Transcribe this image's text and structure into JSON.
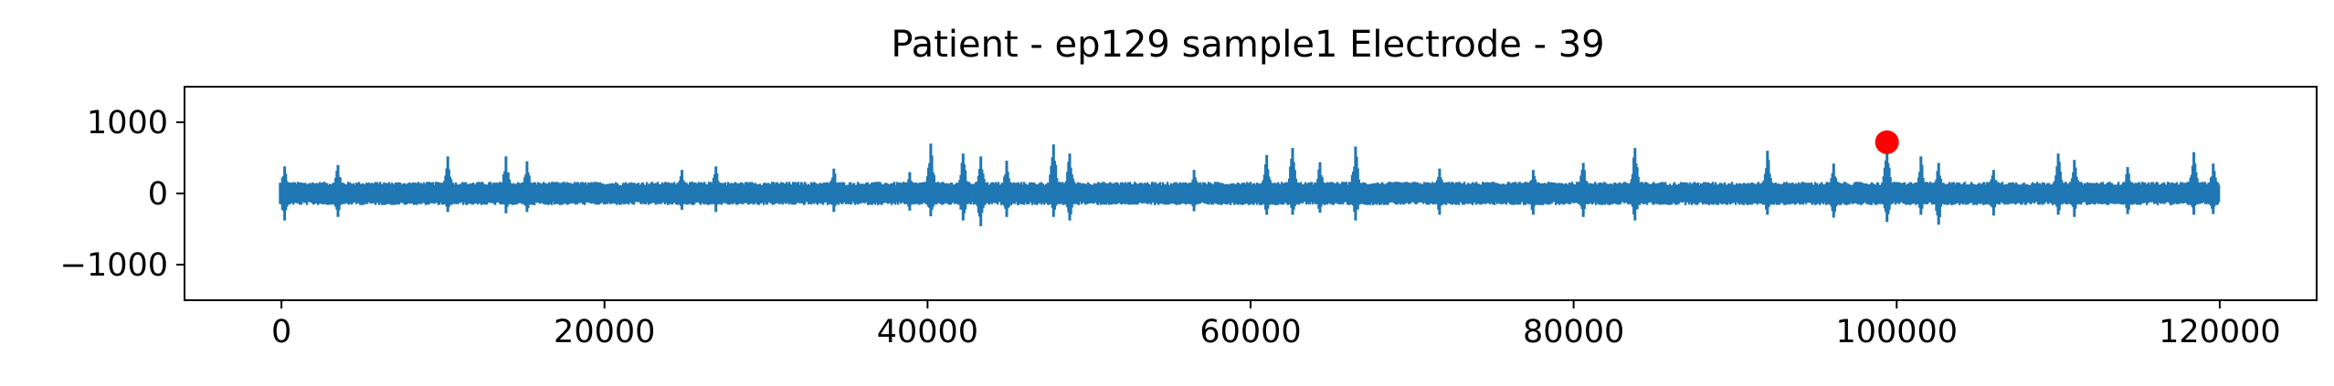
{
  "chart_data": {
    "type": "line",
    "title": "Patient - ep129 sample1 Electrode - 39",
    "xlabel": "",
    "ylabel": "",
    "xlim": [
      -6000,
      126000
    ],
    "ylim": [
      -1500,
      1500
    ],
    "x_ticks": [
      0,
      20000,
      40000,
      60000,
      80000,
      100000,
      120000
    ],
    "x_tick_labels": [
      "0",
      "20000",
      "40000",
      "60000",
      "80000",
      "100000",
      "120000"
    ],
    "y_ticks": [
      1000,
      0,
      -1000
    ],
    "y_tick_labels": [
      "1000",
      "0",
      "−1000"
    ],
    "grid": false,
    "legend": "none",
    "colors": {
      "signal": "#1f77b4",
      "marker": "#ff0000"
    },
    "signal": {
      "x_range": [
        0,
        120000
      ],
      "baseline_upper": 150,
      "baseline_lower": -150,
      "bursts": [
        [
          200,
          380,
          -380
        ],
        [
          3500,
          400,
          -330
        ],
        [
          10300,
          520,
          -260
        ],
        [
          13900,
          520,
          -280
        ],
        [
          15200,
          450,
          -260
        ],
        [
          24800,
          330,
          -230
        ],
        [
          26900,
          380,
          -260
        ],
        [
          34200,
          350,
          -260
        ],
        [
          38900,
          300,
          -240
        ],
        [
          40200,
          700,
          -320
        ],
        [
          42200,
          560,
          -380
        ],
        [
          43300,
          520,
          -460
        ],
        [
          44900,
          460,
          -330
        ],
        [
          47800,
          690,
          -330
        ],
        [
          48800,
          560,
          -380
        ],
        [
          56500,
          330,
          -250
        ],
        [
          61000,
          540,
          -300
        ],
        [
          62600,
          640,
          -300
        ],
        [
          64300,
          440,
          -270
        ],
        [
          66500,
          660,
          -380
        ],
        [
          71700,
          350,
          -300
        ],
        [
          77500,
          330,
          -300
        ],
        [
          80600,
          430,
          -330
        ],
        [
          83800,
          640,
          -380
        ],
        [
          92000,
          600,
          -300
        ],
        [
          96100,
          420,
          -340
        ],
        [
          99400,
          720,
          -400
        ],
        [
          101500,
          520,
          -300
        ],
        [
          102600,
          430,
          -440
        ],
        [
          106000,
          330,
          -310
        ],
        [
          110000,
          560,
          -300
        ],
        [
          111000,
          470,
          -330
        ],
        [
          114300,
          370,
          -290
        ],
        [
          118400,
          580,
          -300
        ],
        [
          119600,
          420,
          -290
        ]
      ]
    },
    "marker": {
      "x": 99400,
      "y": 720,
      "color": "#ff0000"
    }
  }
}
